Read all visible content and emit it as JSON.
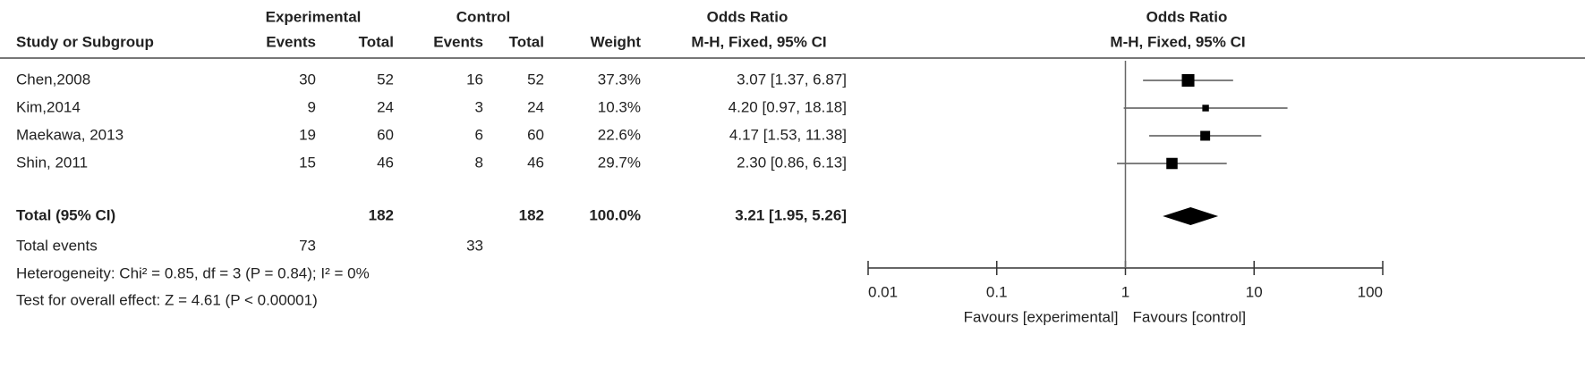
{
  "chart_data": {
    "type": "forest",
    "group_headers": [
      "Experimental",
      "Control",
      "Odds Ratio",
      "Odds Ratio"
    ],
    "columns": [
      "Study or Subgroup",
      "Events",
      "Total",
      "Events",
      "Total",
      "Weight",
      "M-H, Fixed, 95% CI",
      "M-H, Fixed, 95% CI"
    ],
    "studies": [
      {
        "name": "Chen,2008",
        "exp_events": 30,
        "exp_total": 52,
        "ctl_events": 16,
        "ctl_total": 52,
        "weight": 37.3,
        "weight_label": "37.3%",
        "or": 3.07,
        "ci": [
          1.37,
          6.87
        ],
        "ci_label": "3.07 [1.37, 6.87]"
      },
      {
        "name": "Kim,2014",
        "exp_events": 9,
        "exp_total": 24,
        "ctl_events": 3,
        "ctl_total": 24,
        "weight": 10.3,
        "weight_label": "10.3%",
        "or": 4.2,
        "ci": [
          0.97,
          18.18
        ],
        "ci_label": "4.20 [0.97, 18.18]"
      },
      {
        "name": "Maekawa, 2013",
        "exp_events": 19,
        "exp_total": 60,
        "ctl_events": 6,
        "ctl_total": 60,
        "weight": 22.6,
        "weight_label": "22.6%",
        "or": 4.17,
        "ci": [
          1.53,
          11.38
        ],
        "ci_label": "4.17 [1.53, 11.38]"
      },
      {
        "name": "Shin, 2011",
        "exp_events": 15,
        "exp_total": 46,
        "ctl_events": 8,
        "ctl_total": 46,
        "weight": 29.7,
        "weight_label": "29.7%",
        "or": 2.3,
        "ci": [
          0.86,
          6.13
        ],
        "ci_label": "2.30 [0.86, 6.13]"
      }
    ],
    "total": {
      "name": "Total (95% CI)",
      "exp_total": 182,
      "ctl_total": 182,
      "weight": 100,
      "weight_label": "100.0%",
      "or": 3.21,
      "ci": [
        1.95,
        5.26
      ],
      "ci_label": "3.21 [1.95, 5.26]"
    },
    "total_events": {
      "name": "Total events",
      "exp": 73,
      "ctl": 33
    },
    "notes": [
      "Heterogeneity: Chi² = 0.85, df = 3 (P = 0.84); I² = 0%",
      "Test for overall effect: Z = 4.61 (P < 0.00001)"
    ],
    "xscale": "log",
    "xlim": [
      0.01,
      100
    ],
    "xticks": [
      0.01,
      0.1,
      1,
      10,
      100
    ],
    "x_labels": [
      "Favours [experimental]",
      "Favours [control]"
    ],
    "color": "#000000",
    "ci_color": "#555555"
  }
}
